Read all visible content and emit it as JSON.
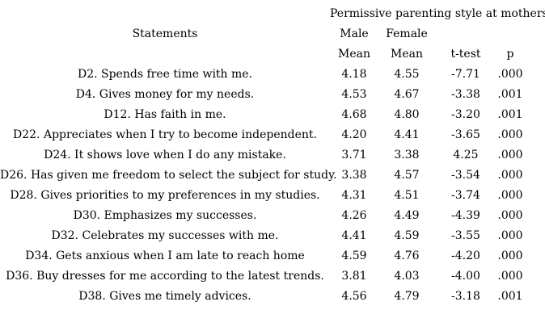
{
  "table": {
    "title": "Permissive parenting style at mothers",
    "statements_header": "Statements",
    "group_headers": {
      "male": "Male",
      "female": "Female"
    },
    "col_headers": {
      "male_mean": "Mean",
      "female_mean": "Mean",
      "t_test": "t-test",
      "p": "p"
    },
    "rows": [
      {
        "statement": "D2. Spends free time with me.",
        "male_mean": "4.18",
        "female_mean": "4.55",
        "t_test": "-7.71",
        "p": ".000"
      },
      {
        "statement": "D4. Gives money for my needs.",
        "male_mean": "4.53",
        "female_mean": "4.67",
        "t_test": "-3.38",
        "p": ".001"
      },
      {
        "statement": "D12. Has faith in me.",
        "male_mean": "4.68",
        "female_mean": "4.80",
        "t_test": "-3.20",
        "p": ".001"
      },
      {
        "statement": "D22. Appreciates when I try to become independent.",
        "male_mean": "4.20",
        "female_mean": "4.41",
        "t_test": "-3.65",
        "p": ".000"
      },
      {
        "statement": "D24. It shows love when I do any mistake.",
        "male_mean": "3.71",
        "female_mean": "3.38",
        "t_test": "4.25",
        "p": ".000"
      },
      {
        "statement": "D26. Has given me freedom to select the subject for study.",
        "male_mean": "3.38",
        "female_mean": "4.57",
        "t_test": "-3.54",
        "p": ".000"
      },
      {
        "statement": "D28. Gives priorities to my preferences in my studies.",
        "male_mean": "4.31",
        "female_mean": "4.51",
        "t_test": "-3.74",
        "p": ".000"
      },
      {
        "statement": "D30. Emphasizes my successes.",
        "male_mean": "4.26",
        "female_mean": "4.49",
        "t_test": "-4.39",
        "p": ".000"
      },
      {
        "statement": "D32. Celebrates my successes with me.",
        "male_mean": "4.41",
        "female_mean": "4.59",
        "t_test": "-3.55",
        "p": ".000"
      },
      {
        "statement": "D34. Gets anxious when I am late to reach home",
        "male_mean": "4.59",
        "female_mean": "4.76",
        "t_test": "-4.20",
        "p": ".000"
      },
      {
        "statement": "D36. Buy dresses for me according to the latest trends.",
        "male_mean": "3.81",
        "female_mean": "4.03",
        "t_test": "-4.00",
        "p": ".000"
      },
      {
        "statement": "D38. Gives me timely advices.",
        "male_mean": "4.56",
        "female_mean": "4.79",
        "t_test": "-3.18",
        "p": ".001"
      }
    ]
  }
}
